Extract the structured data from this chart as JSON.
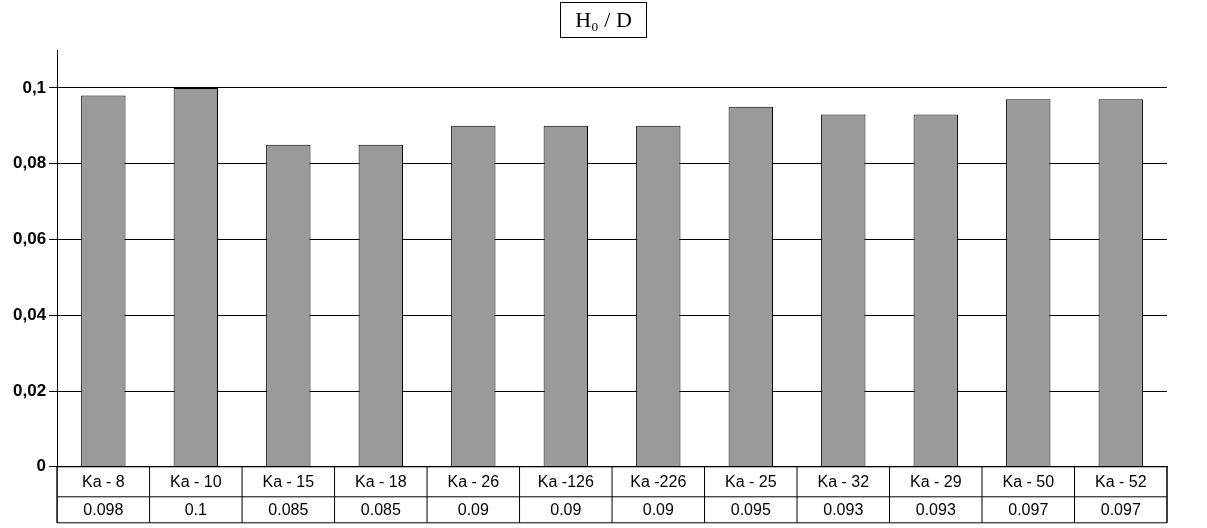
{
  "chart_data": {
    "type": "bar",
    "title": "H₀ / D",
    "categories": [
      "Ka - 8",
      "Ka - 10",
      "Ka - 15",
      "Ka - 18",
      "Ka - 26",
      "Ka -126",
      "Ka -226",
      "Ka - 25",
      "Ka - 32",
      "Ka - 29",
      "Ka - 50",
      "Ka - 52"
    ],
    "values": [
      0.098,
      0.1,
      0.085,
      0.085,
      0.09,
      0.09,
      0.09,
      0.095,
      0.093,
      0.093,
      0.097,
      0.097
    ],
    "value_labels": [
      "0.098",
      "0.1",
      "0.085",
      "0.085",
      "0.09",
      "0.09",
      "0.09",
      "0.095",
      "0.093",
      "0.093",
      "0.097",
      "0.097"
    ],
    "color": "#9a9a9a",
    "ylim": [
      0,
      0.11
    ],
    "yticks": [
      0,
      {
        "value": 0.02,
        "label": "0,02"
      },
      {
        "value": 0.04,
        "label": "0,04"
      },
      {
        "value": 0.06,
        "label": "0,06"
      },
      {
        "value": 0.08,
        "label": "0,08"
      },
      {
        "value": 0.1,
        "label": "0,1"
      }
    ],
    "grid": "y",
    "legend": false
  }
}
